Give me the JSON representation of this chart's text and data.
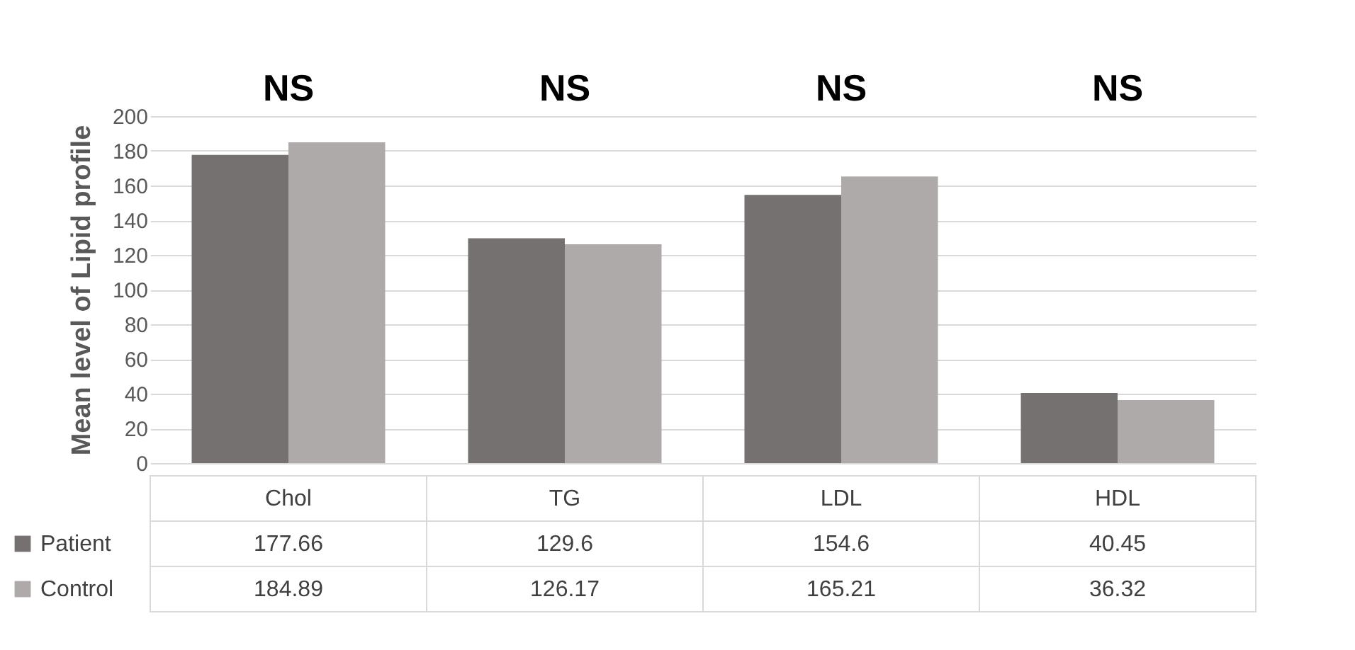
{
  "chart_data": {
    "type": "bar",
    "ylabel": "Mean level of Lipid profile",
    "categories": [
      "Chol",
      "TG",
      "LDL",
      "HDL"
    ],
    "series": [
      {
        "name": "Patient",
        "color": "#767171",
        "values": [
          177.66,
          129.6,
          154.6,
          40.45
        ]
      },
      {
        "name": "Control",
        "color": "#aeaaaa",
        "values": [
          184.89,
          126.17,
          165.21,
          36.32
        ]
      }
    ],
    "ylim": [
      0,
      200
    ],
    "yticks": [
      0,
      20,
      40,
      60,
      80,
      100,
      120,
      140,
      160,
      180,
      200
    ],
    "grid": "y",
    "legend": "bottom left",
    "data_labels": true,
    "annotations": [
      "NS",
      "NS",
      "NS",
      "NS"
    ]
  }
}
